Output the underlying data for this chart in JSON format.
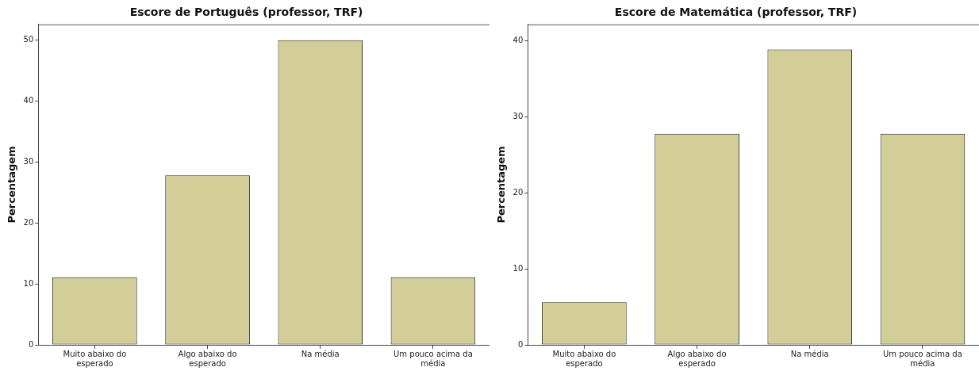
{
  "chart_data": [
    {
      "type": "bar",
      "title": "Escore de Português (professor, TRF)",
      "ylabel": "Percentagem",
      "categories": [
        "Muito abaixo do esperado",
        "Algo abaixo do esperado",
        "Na média",
        "Um pouco acima da média"
      ],
      "values": [
        11.1,
        27.8,
        50,
        11.1
      ],
      "color": "#d3ce98",
      "ylim": [
        0,
        52.6
      ],
      "yticks": [
        0,
        10,
        20,
        30,
        40,
        50
      ],
      "grid": false,
      "legend": false
    },
    {
      "type": "bar",
      "title": "Escore de Matemática (professor, TRF)",
      "ylabel": "Percentagem",
      "categories": [
        "Muito abaixo do esperado",
        "Algo abaixo do esperado",
        "Na média",
        "Um pouco acima da média"
      ],
      "values": [
        5.6,
        27.8,
        38.9,
        27.8
      ],
      "color": "#d3ce98",
      "ylim": [
        0,
        42.2
      ],
      "yticks": [
        0,
        10,
        20,
        30,
        40
      ],
      "grid": false,
      "legend": false
    }
  ]
}
